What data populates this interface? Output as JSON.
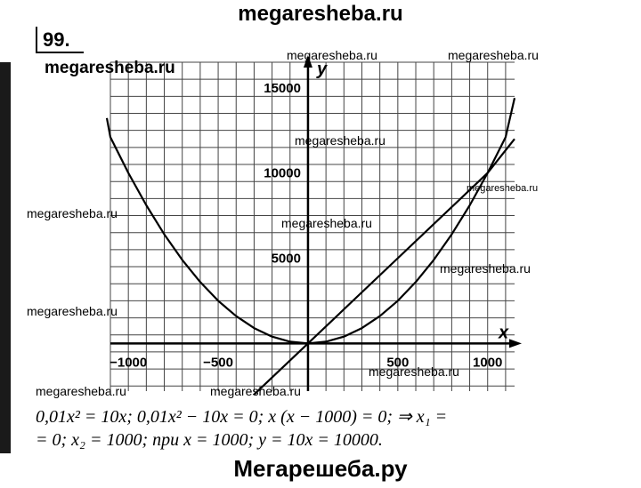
{
  "header": {
    "site": "megaresheba.ru",
    "task_number": "99."
  },
  "footer": {
    "site": "Мегарешеба.ру"
  },
  "watermarks": [
    "megaresheba.ru",
    "megaresheba.ru",
    "megaresheba.ru",
    "megaresheba.ru",
    "megaresheba.ru",
    "megaresheba.ru",
    "megaresheba.ru",
    "megaresheba.ru",
    "megaresheba.ru",
    "megaresheba.ru",
    "megaresheba.ru",
    "megaresheba.ru"
  ],
  "solution": {
    "line1": "0,01x² = 10x;  0,01x² − 10x = 0;  x (x − 1000) = 0;  ⇒ x₁ =",
    "line2": "= 0;  x₂ = 1000;  при  x = 1000;  y = 10x = 10000."
  },
  "chart_data": {
    "type": "line",
    "xlabel": "x",
    "ylabel": "y",
    "xlim": [
      -1100,
      1150
    ],
    "ylim": [
      -2800,
      16500
    ],
    "x_ticks": [
      -1000,
      -500,
      500,
      1000
    ],
    "x_tick_labels": [
      "−1000",
      "−500",
      "500",
      "1000"
    ],
    "y_ticks": [
      5000,
      10000,
      15000
    ],
    "y_tick_labels": [
      "5000",
      "10000",
      "15000"
    ],
    "grid": true,
    "series": [
      {
        "expression": "0.01x²",
        "x": [
          -1150,
          -1100,
          -1000,
          -900,
          -800,
          -700,
          -600,
          -500,
          -400,
          -300,
          -200,
          -100,
          0,
          100,
          200,
          300,
          400,
          500,
          600,
          700,
          800,
          900,
          1000,
          1100,
          1200
        ],
        "values": [
          13225,
          12100,
          10000,
          8100,
          6400,
          4900,
          3600,
          2500,
          1600,
          900,
          400,
          100,
          0,
          100,
          400,
          900,
          1600,
          2500,
          3600,
          4900,
          6400,
          8100,
          10000,
          12100,
          14400
        ]
      },
      {
        "expression": "10x",
        "x": [
          -300,
          0,
          500,
          1000,
          1200
        ],
        "values": [
          -3000,
          0,
          5000,
          10000,
          12000
        ]
      }
    ],
    "intersections": [
      [
        0,
        0
      ],
      [
        1000,
        10000
      ]
    ]
  }
}
